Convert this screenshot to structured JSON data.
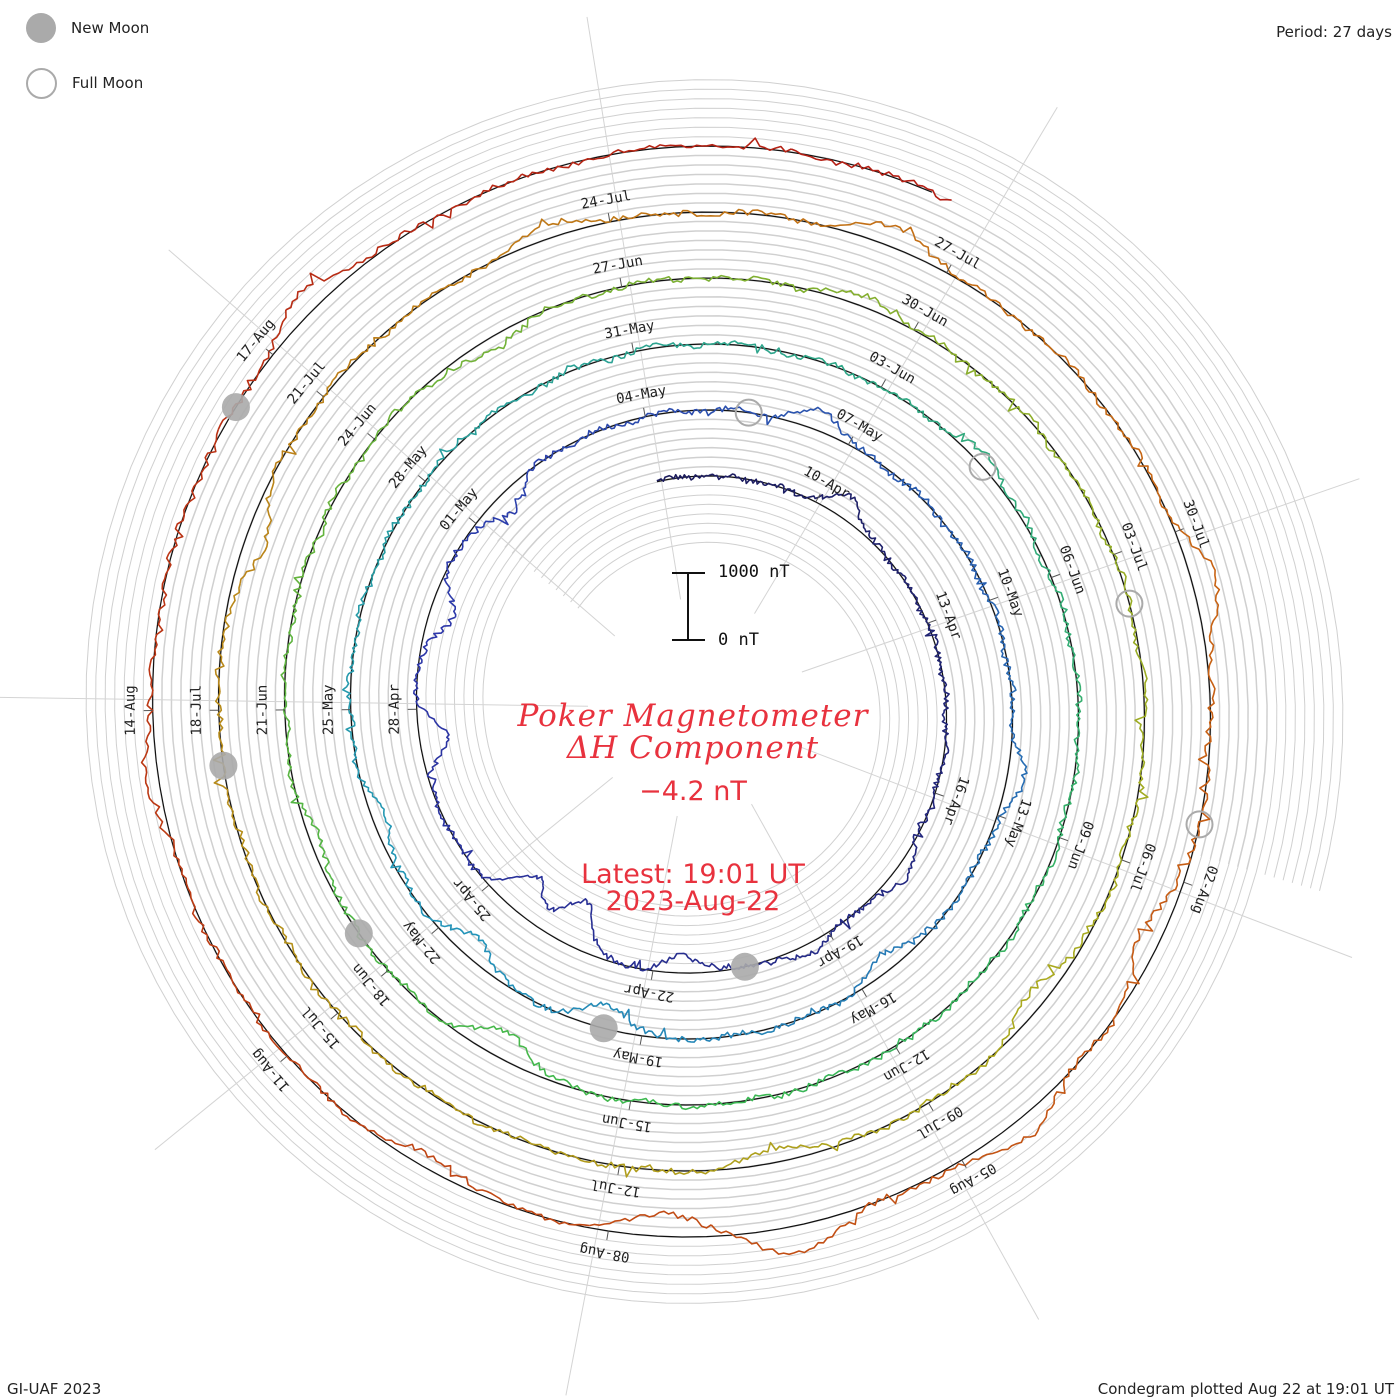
{
  "header": {
    "period": "Period: 27 days",
    "footer_left": "GI-UAF 2023",
    "footer_right": "Condegram plotted Aug 22 at 19:01 UT"
  },
  "legend": {
    "new_moon": "New Moon",
    "full_moon": "Full Moon"
  },
  "title": {
    "line1": "Poker Magnetometer",
    "line2": "ΔH Component",
    "value": "−4.2 nT",
    "latest": "Latest: 19:01 UT",
    "date": "2023-Aug-22"
  },
  "scale": {
    "top_label": "1000 nT",
    "bottom_label": "0 nT"
  },
  "chart_data": {
    "type": "line",
    "style": "polar spiral condegram",
    "period_days": 27,
    "start_date": "2023-04-07",
    "end": "2023-08-22 19:01 UT",
    "radial_scale_nT": 1000,
    "latest_value_nT": -4.2,
    "date_labels": [
      "10-Apr",
      "13-Apr",
      "16-Apr",
      "19-Apr",
      "22-Apr",
      "25-Apr",
      "28-Apr",
      "01-May",
      "04-May",
      "07-May",
      "10-May",
      "13-May",
      "16-May",
      "19-May",
      "22-May",
      "25-May",
      "28-May",
      "31-May",
      "03-Jun",
      "06-Jun",
      "09-Jun",
      "12-Jun",
      "15-Jun",
      "18-Jun",
      "21-Jun",
      "24-Jun",
      "27-Jun",
      "30-Jun",
      "03-Jul",
      "06-Jul",
      "09-Jul",
      "12-Jul",
      "15-Jul",
      "18-Jul",
      "21-Jul",
      "24-Jul",
      "27-Jul",
      "30-Jul",
      "02-Aug",
      "05-Aug",
      "08-Aug",
      "11-Aug",
      "14-Aug",
      "17-Aug"
    ],
    "new_moons": [
      "2023-04-20",
      "2023-05-19",
      "2023-06-18",
      "2023-07-17",
      "2023-08-16"
    ],
    "full_moons": [
      "2023-05-05",
      "2023-06-04",
      "2023-07-03",
      "2023-08-01"
    ],
    "disturbances": [
      {
        "date": "2023-04-10",
        "dH_nT": 320
      },
      {
        "date": "2023-04-17",
        "dH_nT": 200
      },
      {
        "date": "2023-04-19",
        "dH_nT": 150
      },
      {
        "date": "2023-04-21",
        "dH_nT": -250
      },
      {
        "date": "2023-04-23",
        "dH_nT": -700
      },
      {
        "date": "2023-04-24",
        "dH_nT": -600
      },
      {
        "date": "2023-04-27",
        "dH_nT": -400
      },
      {
        "date": "2023-04-29",
        "dH_nT": -350
      },
      {
        "date": "2023-05-01",
        "dH_nT": -300
      },
      {
        "date": "2023-05-06",
        "dH_nT": 300
      },
      {
        "date": "2023-05-12",
        "dH_nT": 250
      },
      {
        "date": "2023-05-15",
        "dH_nT": -250
      },
      {
        "date": "2023-05-19",
        "dH_nT": -350
      },
      {
        "date": "2023-05-21",
        "dH_nT": -300
      },
      {
        "date": "2023-05-23",
        "dH_nT": -200
      },
      {
        "date": "2023-06-04",
        "dH_nT": 150
      },
      {
        "date": "2023-06-16",
        "dH_nT": -400
      },
      {
        "date": "2023-06-19",
        "dH_nT": -150
      },
      {
        "date": "2023-06-25",
        "dH_nT": -200
      },
      {
        "date": "2023-06-29",
        "dH_nT": 150
      },
      {
        "date": "2023-07-07",
        "dH_nT": -250
      },
      {
        "date": "2023-07-10",
        "dH_nT": -200
      },
      {
        "date": "2023-07-19",
        "dH_nT": -300
      },
      {
        "date": "2023-07-23",
        "dH_nT": 200
      },
      {
        "date": "2023-07-26",
        "dH_nT": 300
      },
      {
        "date": "2023-07-30",
        "dH_nT": 350
      },
      {
        "date": "2023-08-02",
        "dH_nT": -300
      },
      {
        "date": "2023-08-04",
        "dH_nT": 300
      },
      {
        "date": "2023-08-06",
        "dH_nT": 400
      },
      {
        "date": "2023-08-07",
        "dH_nT": -350
      },
      {
        "date": "2023-08-09",
        "dH_nT": -200
      },
      {
        "date": "2023-08-13",
        "dH_nT": 200
      },
      {
        "date": "2023-08-17",
        "dH_nT": 300
      }
    ]
  }
}
